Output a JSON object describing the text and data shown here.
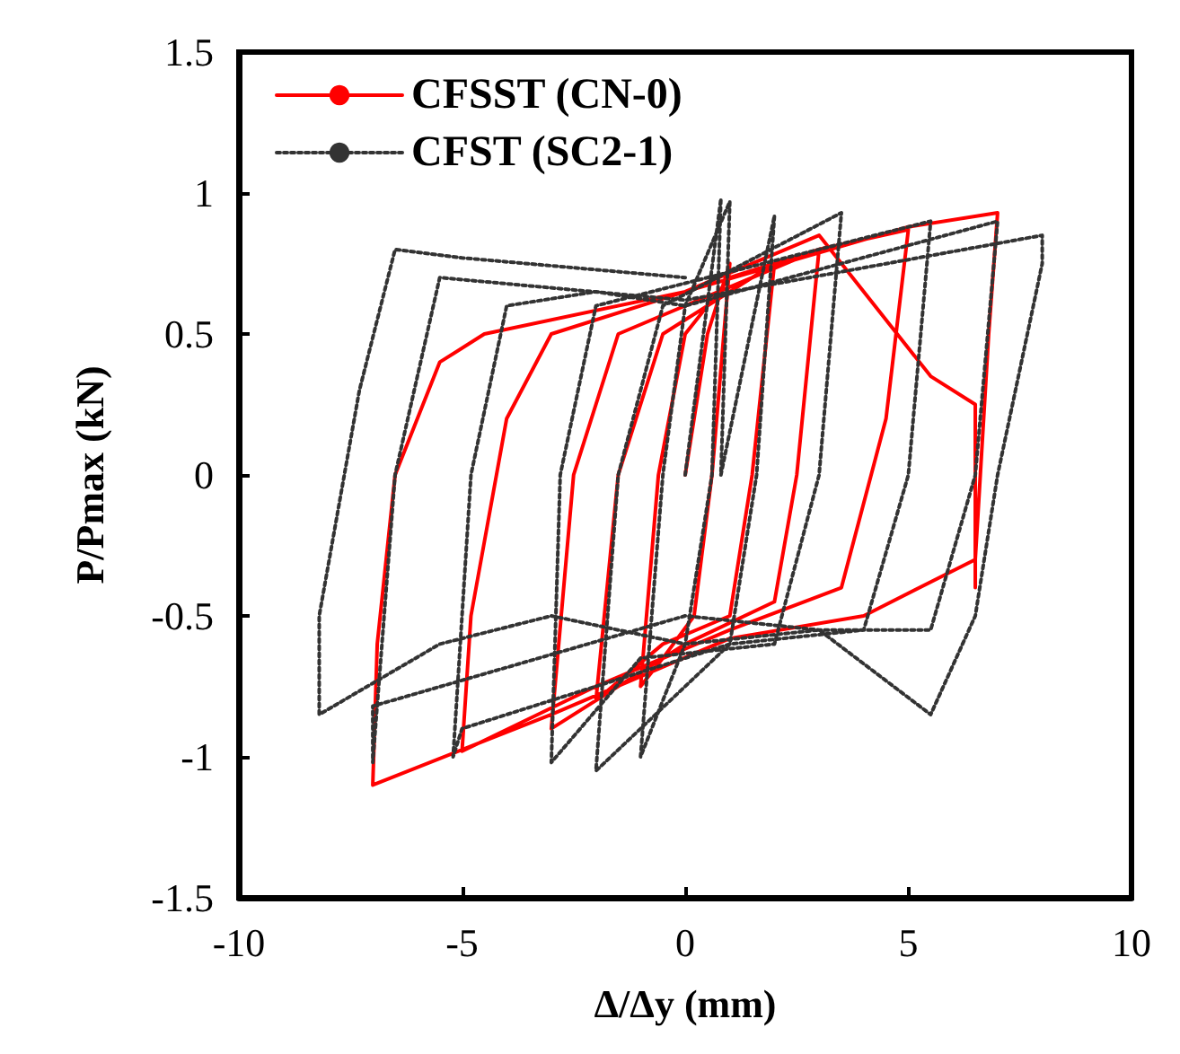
{
  "chart_data": {
    "type": "line",
    "xlabel": "Δ/Δy (mm)",
    "ylabel": "P/Pmax (kN)",
    "xlim": [
      -10,
      10
    ],
    "xticks": [
      -10,
      -5,
      0,
      5,
      10
    ],
    "ylim": [
      -1.5,
      1.5
    ],
    "yticks": [
      -1.5,
      -1,
      -0.5,
      0,
      0.5,
      1,
      1.5
    ],
    "grid": false,
    "legend": "top left",
    "marker": "none",
    "series": [
      {
        "name": "CFSST (CN-0)",
        "color": "#ff0000",
        "line_style": "solid",
        "x": [
          0,
          0.5,
          1,
          0.6,
          0.2,
          -0.5,
          -1,
          -0.6,
          0,
          1,
          2,
          1.5,
          1,
          -0.5,
          -2,
          -1.5,
          -0.5,
          2,
          3,
          2.5,
          2,
          0,
          -3,
          -2.5,
          -1.5,
          3,
          5,
          4.5,
          3.5,
          1,
          -2,
          -5,
          -4.8,
          -4,
          -3,
          0,
          5,
          7,
          6.8,
          6.5,
          4,
          1,
          -3,
          -7,
          -6.9,
          -6.5,
          -5.5,
          -4.5,
          0,
          3,
          5.5,
          6.5,
          6.5
        ],
        "values": [
          0,
          0.5,
          0.75,
          0,
          -0.5,
          -0.65,
          -0.75,
          0,
          0.5,
          0.7,
          0.75,
          0,
          -0.5,
          -0.6,
          -0.8,
          0,
          0.5,
          0.75,
          0.8,
          0,
          -0.45,
          -0.6,
          -0.9,
          0,
          0.5,
          0.8,
          0.87,
          0.2,
          -0.4,
          -0.55,
          -0.75,
          -0.98,
          -0.5,
          0.2,
          0.5,
          0.65,
          0.88,
          0.93,
          0.5,
          -0.3,
          -0.5,
          -0.58,
          -0.85,
          -1.1,
          -0.6,
          0,
          0.4,
          0.5,
          0.65,
          0.85,
          0.35,
          0.25,
          -0.4
        ]
      },
      {
        "name": "CFST (SC2-1)",
        "color": "#333333",
        "line_style": "dotted",
        "x": [
          0,
          0.8,
          0.6,
          0,
          -1,
          -0.5,
          0,
          1,
          0.8,
          2,
          1.6,
          1,
          -2,
          -1.5,
          -0.5,
          3.5,
          3,
          2,
          -1,
          -3,
          -2.8,
          -2,
          0,
          5.5,
          5,
          4,
          1,
          -5,
          -5.2,
          -4.8,
          -4,
          -2,
          0,
          7,
          6.5,
          5.5,
          3,
          0,
          -7,
          -7,
          -6.5,
          -5.5,
          0,
          8,
          8,
          7,
          6.5,
          5.5,
          3,
          0,
          -3,
          -5.5,
          -8.2,
          -8.2,
          -7.3,
          -6.5,
          -5,
          0
        ],
        "values": [
          0,
          0.98,
          0,
          -0.6,
          -1,
          0,
          0.6,
          0.97,
          0,
          0.92,
          0,
          -0.6,
          -1.05,
          0,
          0.6,
          0.93,
          0,
          -0.6,
          -0.65,
          -1.02,
          0,
          0.6,
          0.68,
          0.9,
          0,
          -0.55,
          -0.6,
          -0.9,
          -1,
          0,
          0.6,
          0.65,
          0.6,
          0.9,
          0,
          -0.55,
          -0.55,
          -0.5,
          -0.82,
          -1.02,
          0,
          0.7,
          0.62,
          0.85,
          0.75,
          0,
          -0.5,
          -0.85,
          -0.55,
          -0.6,
          -0.5,
          -0.6,
          -0.85,
          -0.5,
          0.3,
          0.8,
          0.77,
          0.7
        ]
      }
    ]
  }
}
